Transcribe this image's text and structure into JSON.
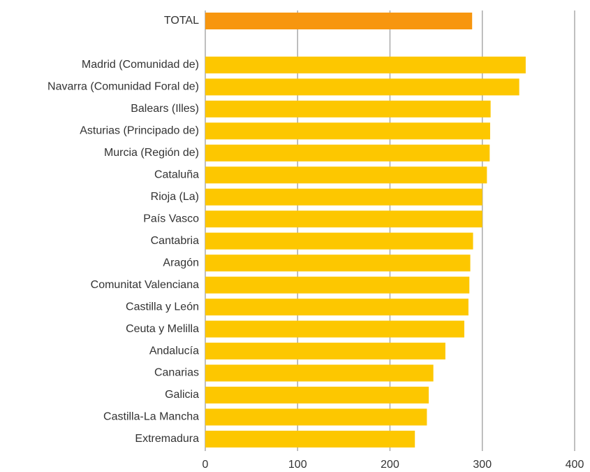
{
  "chart_data": {
    "type": "bar",
    "orientation": "horizontal",
    "categories": [
      "TOTAL",
      null,
      "Madrid (Comunidad de)",
      "Navarra (Comunidad Foral de)",
      "Balears (Illes)",
      "Asturias (Principado de)",
      "Murcia (Región de)",
      "Cataluña",
      "Rioja (La)",
      "País Vasco",
      "Cantabria",
      "Aragón",
      "Comunitat Valenciana",
      "Castilla y León",
      "Ceuta y Melilla",
      "Andalucía",
      "Canarias",
      "Galicia",
      "Castilla-La Mancha",
      "Extremadura"
    ],
    "values": [
      289,
      null,
      347,
      340,
      309,
      308.5,
      308,
      305,
      300,
      300,
      290,
      287,
      286,
      285,
      280.5,
      260,
      247,
      242,
      240,
      227
    ],
    "colors": [
      "#f7960f",
      null,
      "#fdc700",
      "#fdc700",
      "#fdc700",
      "#fdc700",
      "#fdc700",
      "#fdc700",
      "#fdc700",
      "#fdc700",
      "#fdc700",
      "#fdc700",
      "#fdc700",
      "#fdc700",
      "#fdc700",
      "#fdc700",
      "#fdc700",
      "#fdc700",
      "#fdc700",
      "#fdc700"
    ],
    "xlim": [
      0,
      400
    ],
    "xticks": [
      0,
      100,
      200,
      300,
      400
    ],
    "grid": true
  }
}
